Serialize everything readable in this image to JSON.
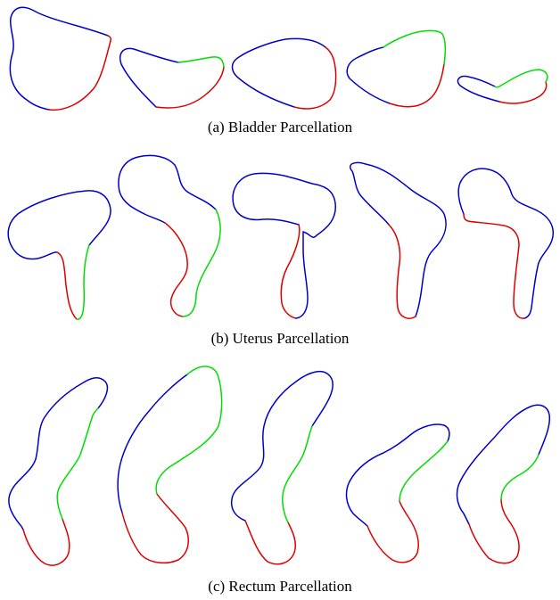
{
  "colors": {
    "segment_a": "#0000cc",
    "segment_b": "#dd0000",
    "segment_c": "#00dd00",
    "background": "#ffffff",
    "caption_text": "#000000"
  },
  "rows": [
    {
      "caption": "(a) Bladder Parcellation",
      "organ": "bladder",
      "shape_count": 5
    },
    {
      "caption": "(b) Uterus Parcellation",
      "organ": "uterus",
      "shape_count": 5
    },
    {
      "caption": "(c) Rectum Parcellation",
      "organ": "rectum",
      "shape_count": 5
    }
  ]
}
